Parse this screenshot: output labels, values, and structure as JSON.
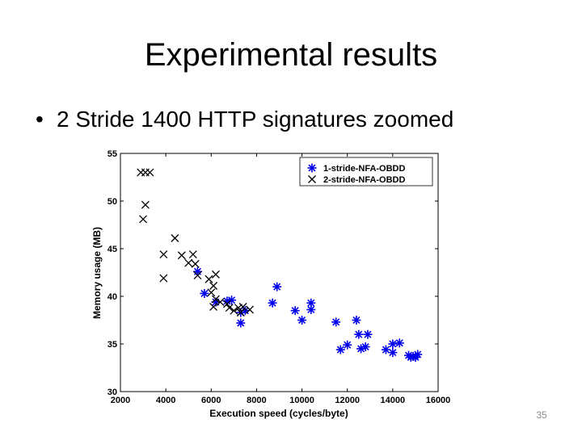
{
  "slide": {
    "title": "Experimental results",
    "bullet": "2 Stride 1400 HTTP signatures zoomed",
    "page_number": "35"
  },
  "chart_data": {
    "type": "scatter",
    "xlabel": "Execution speed (cycles/byte)",
    "ylabel": "Memory usage (MB)",
    "xlim": [
      2000,
      16000
    ],
    "ylim": [
      30,
      55
    ],
    "xticks": [
      2000,
      4000,
      6000,
      8000,
      10000,
      12000,
      14000,
      16000
    ],
    "yticks": [
      30,
      35,
      40,
      45,
      50,
      55
    ],
    "grid": false,
    "legend_position": "top-right",
    "series": [
      {
        "name": "1-stride-NFA-OBDD",
        "marker": "asterisk",
        "color": "#0000ee",
        "points": [
          [
            5400,
            42.6
          ],
          [
            5700,
            40.3
          ],
          [
            6200,
            39.4
          ],
          [
            6700,
            39.5
          ],
          [
            6900,
            39.6
          ],
          [
            7300,
            38.3
          ],
          [
            7300,
            37.2
          ],
          [
            7500,
            38.5
          ],
          [
            8700,
            39.3
          ],
          [
            8900,
            41.0
          ],
          [
            9700,
            38.5
          ],
          [
            10000,
            37.5
          ],
          [
            10400,
            38.6
          ],
          [
            10400,
            39.3
          ],
          [
            11500,
            37.3
          ],
          [
            11700,
            34.4
          ],
          [
            12000,
            34.9
          ],
          [
            12400,
            37.5
          ],
          [
            12500,
            36.0
          ],
          [
            12600,
            34.5
          ],
          [
            12800,
            34.7
          ],
          [
            12900,
            36.0
          ],
          [
            13700,
            34.4
          ],
          [
            14000,
            34.1
          ],
          [
            14000,
            35.0
          ],
          [
            14300,
            35.1
          ],
          [
            14700,
            33.8
          ],
          [
            14800,
            33.6
          ],
          [
            14900,
            33.7
          ],
          [
            15000,
            33.6
          ],
          [
            15100,
            33.9
          ]
        ]
      },
      {
        "name": "2-stride-NFA-OBDD",
        "marker": "x",
        "color": "#000000",
        "points": [
          [
            2900,
            53.0
          ],
          [
            3100,
            53.0
          ],
          [
            3300,
            53.0
          ],
          [
            3100,
            49.6
          ],
          [
            3000,
            48.1
          ],
          [
            4400,
            46.1
          ],
          [
            3900,
            44.4
          ],
          [
            3900,
            41.9
          ],
          [
            4700,
            44.3
          ],
          [
            5000,
            43.5
          ],
          [
            5200,
            44.4
          ],
          [
            5300,
            43.4
          ],
          [
            5400,
            42.2
          ],
          [
            5900,
            41.8
          ],
          [
            6200,
            42.3
          ],
          [
            6100,
            41.1
          ],
          [
            6000,
            40.4
          ],
          [
            6200,
            39.7
          ],
          [
            6100,
            38.9
          ],
          [
            6400,
            39.4
          ],
          [
            6700,
            39.2
          ],
          [
            6800,
            38.8
          ],
          [
            7000,
            38.5
          ],
          [
            7200,
            38.8
          ],
          [
            7300,
            38.3
          ],
          [
            7400,
            38.9
          ],
          [
            7700,
            38.6
          ]
        ]
      }
    ]
  }
}
